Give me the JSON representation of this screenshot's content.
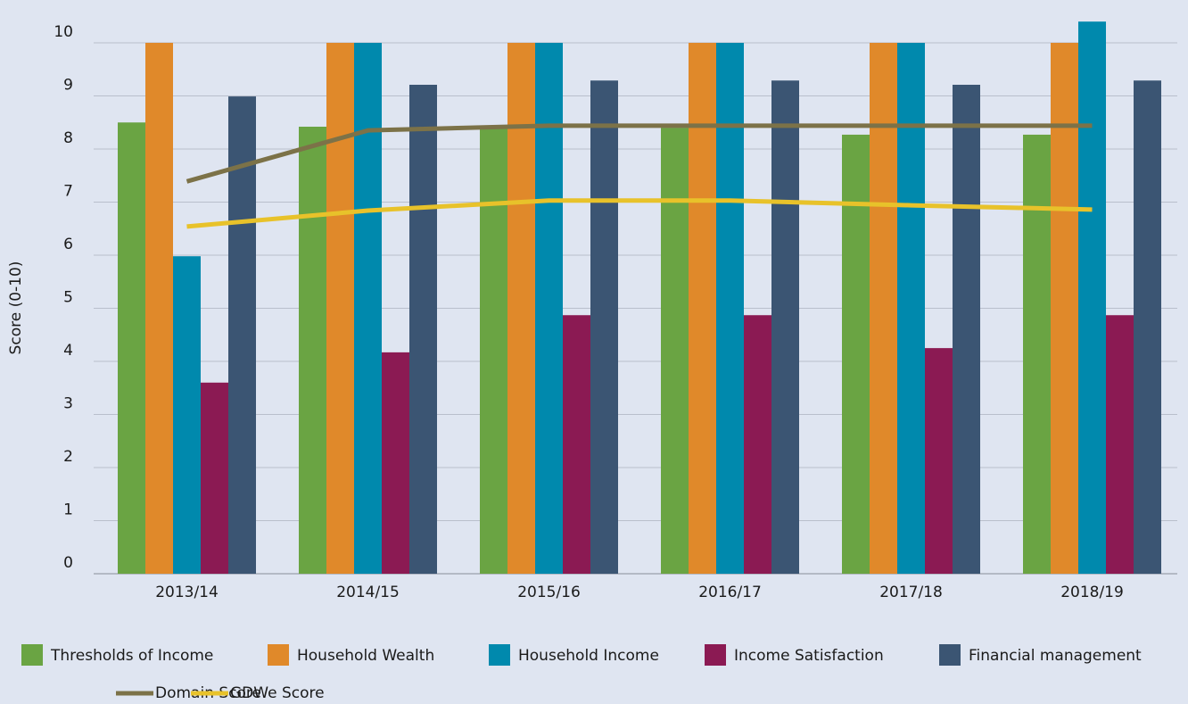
{
  "chart_data": {
    "type": "bar",
    "y_label": "Score (0-10)",
    "categories": [
      "2013/14",
      "2014/15",
      "2015/16",
      "2016/17",
      "2017/18",
      "2018/19"
    ],
    "series": [
      {
        "name": "Thresholds of Income",
        "type": "bar",
        "color": "#6aa443",
        "values": [
          8.5,
          8.42,
          8.4,
          8.4,
          8.27,
          8.27
        ]
      },
      {
        "name": "Household Wealth",
        "type": "bar",
        "color": "#e0892a",
        "values": [
          10,
          10,
          10,
          10,
          10,
          10
        ]
      },
      {
        "name": "Household Income",
        "type": "bar",
        "color": "#0089ad",
        "values": [
          5.98,
          10,
          10,
          10,
          10,
          10.4
        ]
      },
      {
        "name": "Income Satisfaction",
        "type": "bar",
        "color": "#8b1a53",
        "values": [
          3.6,
          4.17,
          4.87,
          4.87,
          4.25,
          4.87
        ]
      },
      {
        "name": "Financial management",
        "type": "bar",
        "color": "#3b5573",
        "values": [
          8.99,
          9.21,
          9.29,
          9.29,
          9.21,
          9.29
        ]
      },
      {
        "name": "Domain Score",
        "type": "line",
        "color": "#7c7248",
        "values": [
          7.39,
          8.35,
          8.44,
          8.44,
          8.44,
          8.44
        ]
      },
      {
        "name": "GDWe Score",
        "type": "line",
        "color": "#e8c22a",
        "values": [
          6.54,
          6.84,
          7.03,
          7.03,
          6.94,
          6.86
        ]
      }
    ],
    "ylim": [
      0,
      10
    ],
    "yticks": [
      0,
      1,
      2,
      3,
      4,
      5,
      6,
      7,
      8,
      9,
      10
    ],
    "grid": true,
    "legend": "bottom"
  }
}
